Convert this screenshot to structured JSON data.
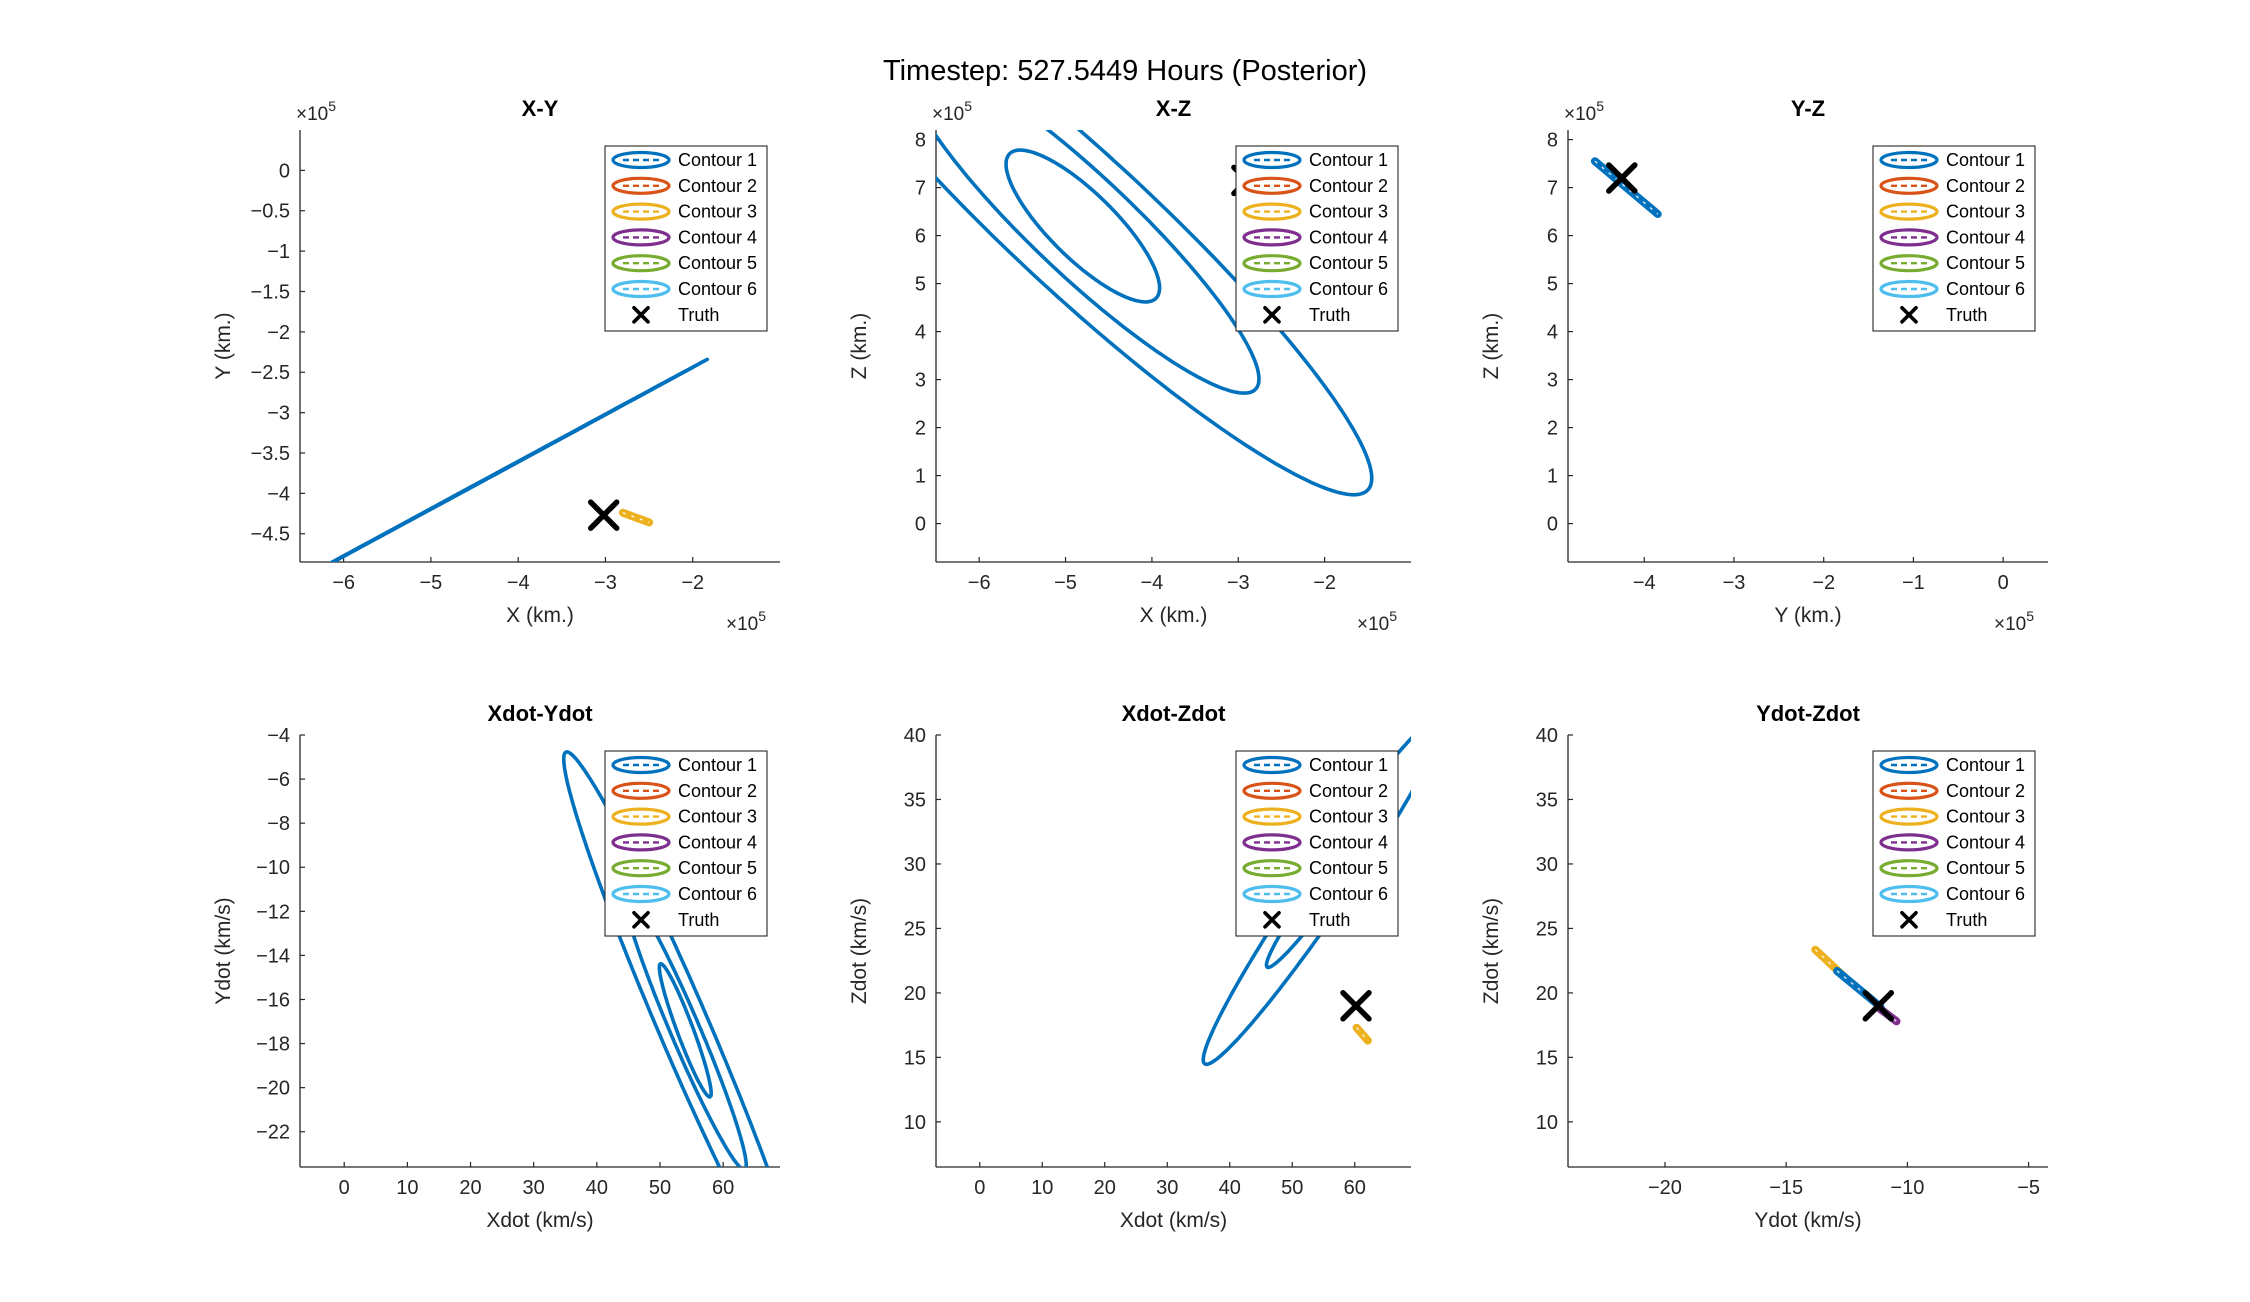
{
  "figure": {
    "title": "Timestep: 527.5449 Hours (Posterior)"
  },
  "colors": {
    "contour_1": "#0072BD",
    "contour_2": "#D95319",
    "contour_3": "#EDB120",
    "contour_4": "#7E2F8E",
    "contour_5": "#77AC30",
    "contour_6": "#4DBEEE",
    "truth": "#000000",
    "axis": "#262626"
  },
  "legend": {
    "placement": "top-right",
    "entries": [
      "Contour 1",
      "Contour 2",
      "Contour 3",
      "Contour 4",
      "Contour 5",
      "Contour 6",
      "Truth"
    ]
  },
  "chart_data": [
    {
      "type": "scatter",
      "title": "X-Y",
      "xlabel": "X (km.)",
      "ylabel": "Y (km.)",
      "x_exponent": "×10",
      "x_exponent_power": "5",
      "y_exponent": "×10",
      "y_exponent_power": "5",
      "xlim": [
        -6.5,
        -1.0
      ],
      "ylim": [
        -4.85,
        0.5
      ],
      "xticks": [
        -6,
        -5,
        -4,
        -3,
        -2
      ],
      "yticks": [
        0,
        -0.5,
        -1,
        -1.5,
        -2,
        -2.5,
        -3,
        -3.5,
        -4,
        -4.5
      ],
      "contours": [
        {
          "series": "Contour 1",
          "cx": -4.5,
          "cy": -3.9,
          "a": [
            0.55,
            0.32
          ],
          "b": [
            0.2,
            0.12
          ],
          "angle_deg": 30
        },
        {
          "series": "Contour 1",
          "cx": -4.5,
          "cy": -3.9,
          "a": [
            1.3,
            0.76
          ],
          "b": [
            0.48,
            0.28
          ],
          "angle_deg": 30
        },
        {
          "series": "Contour 1",
          "cx": -4.5,
          "cy": -3.9,
          "a": [
            2.55,
            1.49
          ],
          "b": [
            0.78,
            0.46
          ],
          "angle_deg": 30
        }
      ],
      "markers": [
        {
          "series": "Contour 3",
          "x": -2.65,
          "y": -4.3,
          "dx": 0.3,
          "dy": -0.12
        },
        {
          "series": "Truth",
          "x": -3.02,
          "y": -4.27
        }
      ]
    },
    {
      "type": "scatter",
      "title": "X-Z",
      "xlabel": "X (km.)",
      "ylabel": "Z (km.)",
      "x_exponent": "×10",
      "x_exponent_power": "5",
      "y_exponent": "×10",
      "y_exponent_power": "5",
      "xlim": [
        -6.5,
        -1.0
      ],
      "ylim": [
        -0.8,
        8.2
      ],
      "xticks": [
        -6,
        -5,
        -4,
        -3,
        -2
      ],
      "yticks": [
        0,
        1,
        2,
        3,
        4,
        5,
        6,
        7,
        8
      ],
      "contours": [
        {
          "series": "Contour 1",
          "cx": -4.8,
          "cy": 6.2,
          "a": [
            0.85,
            -1.5
          ],
          "b": [
            0.26,
            0.5
          ],
          "angle_deg": 0
        },
        {
          "series": "Contour 1",
          "cx": -4.8,
          "cy": 6.2,
          "a": [
            2.0,
            -3.4
          ],
          "b": [
            0.4,
            0.75
          ],
          "angle_deg": 0
        },
        {
          "series": "Contour 1",
          "cx": -4.8,
          "cy": 6.2,
          "a": [
            3.3,
            -5.5
          ],
          "b": [
            0.55,
            1.05
          ],
          "angle_deg": 0
        }
      ],
      "markers": [
        {
          "series": "Truth",
          "x": -2.9,
          "y": 7.15
        }
      ]
    },
    {
      "type": "scatter",
      "title": "Y-Z",
      "xlabel": "Y (km.)",
      "ylabel": "Z (km.)",
      "x_exponent": "×10",
      "x_exponent_power": "5",
      "y_exponent": "×10",
      "y_exponent_power": "5",
      "xlim": [
        -4.85,
        0.5
      ],
      "ylim": [
        -0.8,
        8.2
      ],
      "xticks": [
        -4,
        -3,
        -2,
        -1,
        0
      ],
      "yticks": [
        0,
        1,
        2,
        3,
        4,
        5,
        6,
        7,
        8
      ],
      "contours": [],
      "markers": [
        {
          "series": "Contour 1",
          "x": -4.2,
          "y": 7.0,
          "dx": 0.7,
          "dy": -1.1
        },
        {
          "series": "Truth",
          "x": -4.25,
          "y": 7.2
        }
      ]
    },
    {
      "type": "scatter",
      "title": "Xdot-Ydot",
      "xlabel": "Xdot (km/s)",
      "ylabel": "Ydot (km/s)",
      "xlim": [
        -7,
        69
      ],
      "ylim": [
        -23.6,
        -4
      ],
      "xticks": [
        0,
        10,
        20,
        30,
        40,
        50,
        60
      ],
      "yticks": [
        -4,
        -6,
        -8,
        -10,
        -12,
        -14,
        -16,
        -18,
        -20,
        -22
      ],
      "contours": [
        {
          "series": "Contour 1",
          "cx": 54,
          "cy": -17.4,
          "a": [
            4.0,
            -3.0
          ],
          "b": [
            0.9,
            0.35
          ],
          "angle_deg": 0
        },
        {
          "series": "Contour 1",
          "cx": 54,
          "cy": -17.4,
          "a": [
            9.5,
            -6.3
          ],
          "b": [
            1.7,
            0.55
          ],
          "angle_deg": 0
        },
        {
          "series": "Contour 1",
          "cx": 54,
          "cy": -17.4,
          "a": [
            19.0,
            -12.6
          ],
          "b": [
            3.0,
            0.9
          ],
          "angle_deg": 0
        }
      ],
      "markers": []
    },
    {
      "type": "scatter",
      "title": "Xdot-Zdot",
      "xlabel": "Xdot (km/s)",
      "ylabel": "Zdot (km/s)",
      "xlim": [
        -7,
        69
      ],
      "ylim": [
        6.5,
        40
      ],
      "xticks": [
        0,
        10,
        20,
        30,
        40,
        50,
        60
      ],
      "yticks": [
        10,
        15,
        20,
        25,
        30,
        35,
        40
      ],
      "contours": [
        {
          "series": "Contour 1",
          "cx": 55,
          "cy": 28,
          "a": [
            9.0,
            6.0
          ],
          "b": [
            1.5,
            -0.5
          ],
          "angle_deg": 0
        },
        {
          "series": "Contour 1",
          "cx": 55,
          "cy": 28,
          "a": [
            19.0,
            13.5
          ],
          "b": [
            3.0,
            -1.0
          ],
          "angle_deg": 0
        }
      ],
      "markers": [
        {
          "series": "Contour 3",
          "x": 61.2,
          "y": 16.8,
          "dx": 1.8,
          "dy": -1.0
        },
        {
          "series": "Truth",
          "x": 60.2,
          "y": 19.0
        }
      ]
    },
    {
      "type": "scatter",
      "title": "Ydot-Zdot",
      "xlabel": "Ydot (km/s)",
      "ylabel": "Zdot (km/s)",
      "xlim": [
        -24,
        -4.2
      ],
      "ylim": [
        6.5,
        40
      ],
      "xticks": [
        -20,
        -15,
        -10,
        -5
      ],
      "yticks": [
        10,
        15,
        20,
        25,
        30,
        35,
        40
      ],
      "contours": [],
      "markers": [
        {
          "series": "Contour 3",
          "x": -13.2,
          "y": 22.3,
          "dx": 1.2,
          "dy": -2.1
        },
        {
          "series": "Contour 1",
          "x": -12.0,
          "y": 20.3,
          "dx": 1.8,
          "dy": -2.8
        },
        {
          "series": "Contour 4",
          "x": -10.8,
          "y": 18.3,
          "dx": 0.7,
          "dy": -1.0
        },
        {
          "series": "Truth",
          "x": -11.2,
          "y": 19.0
        }
      ]
    }
  ]
}
